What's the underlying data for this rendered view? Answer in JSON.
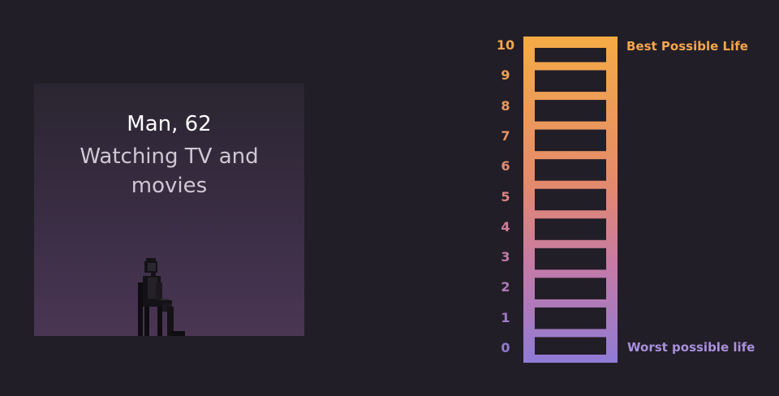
{
  "card": {
    "title": "Man, 62",
    "caption": "Watching TV and movies"
  },
  "ladder": {
    "rungs": [
      {
        "value": "10",
        "color": "#f3a64b"
      },
      {
        "value": "9",
        "color": "#f0a151"
      },
      {
        "value": "8",
        "color": "#ec9a5a"
      },
      {
        "value": "7",
        "color": "#e79364"
      },
      {
        "value": "6",
        "color": "#e28c72"
      },
      {
        "value": "5",
        "color": "#dc8483"
      },
      {
        "value": "4",
        "color": "#d27e96"
      },
      {
        "value": "3",
        "color": "#c37aa9"
      },
      {
        "value": "2",
        "color": "#b27abb"
      },
      {
        "value": "1",
        "color": "#a17bc9"
      },
      {
        "value": "0",
        "color": "#927bd4"
      }
    ],
    "top_label": "Best Possible Life",
    "bottom_label": "Worst possible life",
    "top_color": "#f3a64b",
    "bottom_color": "#a891dc"
  }
}
